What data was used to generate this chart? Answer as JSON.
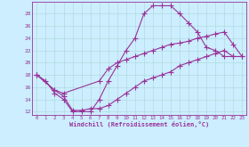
{
  "xlabel": "Windchill (Refroidissement éolien,°C)",
  "bg_color": "#cceeff",
  "line_color": "#993399",
  "xlim": [
    -0.5,
    23.5
  ],
  "ylim": [
    11.5,
    30
  ],
  "xticks": [
    0,
    1,
    2,
    3,
    4,
    5,
    6,
    7,
    8,
    9,
    10,
    11,
    12,
    13,
    14,
    15,
    16,
    17,
    18,
    19,
    20,
    21,
    22,
    23
  ],
  "yticks": [
    12,
    14,
    16,
    18,
    20,
    22,
    24,
    26,
    28
  ],
  "curve1_x": [
    0,
    1,
    2,
    3,
    4,
    5,
    6,
    7,
    8,
    9,
    10,
    11,
    12,
    13,
    14,
    15,
    16,
    17,
    18,
    19,
    20,
    21,
    22
  ],
  "curve1_y": [
    18,
    17,
    15,
    14,
    12,
    12,
    12,
    14,
    17,
    19.5,
    22,
    24,
    28,
    29.3,
    29.3,
    29.3,
    28,
    26.5,
    25,
    22.5,
    22,
    21,
    21
  ],
  "curve2_x": [
    0,
    2,
    3,
    7,
    8,
    9,
    10,
    11,
    12,
    13,
    14,
    15,
    16,
    17,
    18,
    19,
    20,
    21,
    22,
    23
  ],
  "curve2_y": [
    18,
    15.5,
    15,
    17,
    19,
    20,
    20.5,
    21,
    21.5,
    22,
    22.5,
    23,
    23.2,
    23.5,
    24,
    24.3,
    24.7,
    25,
    23,
    21
  ],
  "curve3_x": [
    0,
    2,
    3,
    4,
    5,
    6,
    7,
    8,
    9,
    10,
    11,
    12,
    13,
    14,
    15,
    16,
    17,
    18,
    19,
    20,
    21,
    22,
    23
  ],
  "curve3_y": [
    18,
    15.5,
    14.5,
    12.2,
    12.2,
    12.5,
    12.5,
    13,
    14,
    15,
    16,
    17,
    17.5,
    18,
    18.5,
    19.5,
    20,
    20.5,
    21,
    21.5,
    22,
    21,
    21
  ]
}
